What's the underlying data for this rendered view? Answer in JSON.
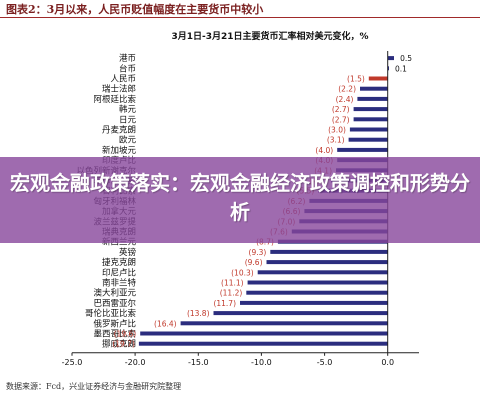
{
  "figure": {
    "title": "图表2：3月以来，人民币贬值幅度在主要货币中较小",
    "source": "数据来源：Fcd，兴业证券经济与金融研究院整理"
  },
  "overlay": {
    "headline": "宏观金融政策落实：宏观金融经济政策调控和形势分析"
  },
  "colors": {
    "bar_default": "#2b2d7e",
    "bar_highlight": "#c0392b",
    "label_text": "#c0392b",
    "axis": "#222222",
    "overlay": "#87469b"
  },
  "chart_data": {
    "type": "bar",
    "orientation": "horizontal",
    "title": "3月1日-3月21日主要货币汇率相对美元变化，%",
    "xlabel": "",
    "ylabel": "",
    "xlim": [
      -25,
      2
    ],
    "xticks": [
      -25.0,
      -20.0,
      -15.0,
      -10.0,
      -5.0,
      0.0
    ],
    "xtick_labels": [
      "-25.0",
      "-20.0",
      "-15.0",
      "-10.0",
      "-5.0",
      "0.0"
    ],
    "grid": false,
    "legend": "none",
    "highlight_category": "人民币",
    "categories": [
      "港币",
      "台币",
      "人民币",
      "瑞士法郎",
      "阿根廷比索",
      "韩元",
      "日元",
      "丹麦克朗",
      "欧元",
      "新加坡元",
      "印度卢比",
      "以色列新谢克尔",
      "菲律宾比索",
      "智利比索",
      "匈牙利福林",
      "加拿大元",
      "波兰兹罗提",
      "瑞典克朗",
      "新西兰元",
      "英镑",
      "捷克克朗",
      "印尼卢比",
      "南非兰特",
      "澳大利亚元",
      "巴西雷亚尔",
      "哥伦比亚比索",
      "俄罗斯卢比",
      "墨西哥比索",
      "挪威克朗"
    ],
    "values": [
      0.5,
      0.1,
      -1.5,
      -2.2,
      -2.4,
      -2.7,
      -2.7,
      -3.0,
      -3.1,
      -4.0,
      -4.0,
      -4.1,
      -4.5,
      -5.5,
      -6.2,
      -6.6,
      -7.0,
      -7.6,
      -8.7,
      -9.3,
      -9.6,
      -10.3,
      -11.1,
      -11.2,
      -11.7,
      -13.8,
      -16.4,
      -19.6,
      -19.7
    ],
    "data_labels": [
      "0.5",
      "0.1",
      "(1.5)",
      "(2.2)",
      "(2.4)",
      "(2.7)",
      "(2.7)",
      "(3.0)",
      "(3.1)",
      "(4.0)",
      "(4.0)",
      "(4.1)",
      "(4.5)",
      "(5.5)",
      "(6.2)",
      "(6.6)",
      "(7.0)",
      "(7.6)",
      "(8.7)",
      "(9.3)",
      "(9.6)",
      "(10.3)",
      "(11.1)",
      "(11.2)",
      "(11.7)",
      "(13.8)",
      "(16.4)",
      "(19.6)",
      "(19.7)"
    ]
  }
}
